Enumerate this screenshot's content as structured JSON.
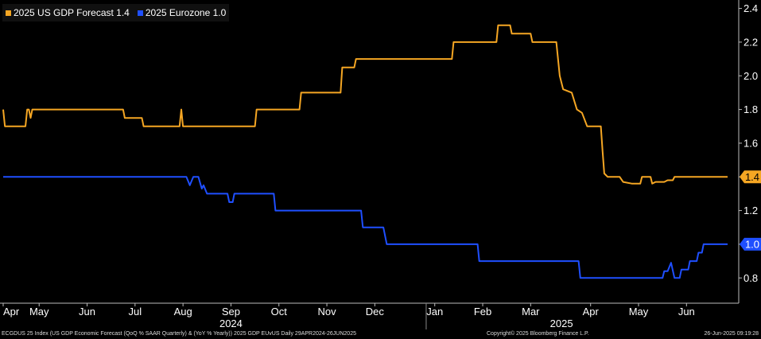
{
  "chart_data": {
    "type": "line",
    "legend_position": "top-left",
    "grid": false,
    "series": [
      {
        "name": "2025 US GDP Forecast 1.4",
        "color": "#f5a623",
        "last_value_label": "1.4",
        "points": [
          [
            "2024-04-29",
            1.8
          ],
          [
            "2024-04-30",
            1.7
          ],
          [
            "2024-05-01",
            1.7
          ],
          [
            "2024-05-12",
            1.7
          ],
          [
            "2024-05-13",
            1.8
          ],
          [
            "2024-05-14",
            1.8
          ],
          [
            "2024-05-15",
            1.75
          ],
          [
            "2024-05-16",
            1.8
          ],
          [
            "2024-06-01",
            1.8
          ],
          [
            "2024-07-01",
            1.8
          ],
          [
            "2024-07-08",
            1.8
          ],
          [
            "2024-07-09",
            1.75
          ],
          [
            "2024-07-19",
            1.75
          ],
          [
            "2024-07-20",
            1.7
          ],
          [
            "2024-08-10",
            1.7
          ],
          [
            "2024-08-11",
            1.8
          ],
          [
            "2024-08-12",
            1.7
          ],
          [
            "2024-09-01",
            1.7
          ],
          [
            "2024-09-23",
            1.7
          ],
          [
            "2024-09-24",
            1.8
          ],
          [
            "2024-10-19",
            1.8
          ],
          [
            "2024-10-20",
            1.9
          ],
          [
            "2024-11-12",
            1.9
          ],
          [
            "2024-11-13",
            2.05
          ],
          [
            "2024-11-20",
            2.05
          ],
          [
            "2024-11-21",
            2.1
          ],
          [
            "2024-12-01",
            2.1
          ],
          [
            "2025-01-01",
            2.1
          ],
          [
            "2025-01-16",
            2.1
          ],
          [
            "2025-01-17",
            2.2
          ],
          [
            "2025-02-01",
            2.2
          ],
          [
            "2025-02-11",
            2.2
          ],
          [
            "2025-02-12",
            2.3
          ],
          [
            "2025-02-19",
            2.3
          ],
          [
            "2025-02-20",
            2.25
          ],
          [
            "2025-03-03",
            2.25
          ],
          [
            "2025-03-04",
            2.2
          ],
          [
            "2025-03-18",
            2.2
          ],
          [
            "2025-03-20",
            2.0
          ],
          [
            "2025-03-22",
            1.92
          ],
          [
            "2025-03-27",
            1.9
          ],
          [
            "2025-03-30",
            1.8
          ],
          [
            "2025-04-02",
            1.78
          ],
          [
            "2025-04-05",
            1.7
          ],
          [
            "2025-04-13",
            1.7
          ],
          [
            "2025-04-14",
            1.55
          ],
          [
            "2025-04-15",
            1.42
          ],
          [
            "2025-04-17",
            1.4
          ],
          [
            "2025-04-24",
            1.4
          ],
          [
            "2025-04-26",
            1.37
          ],
          [
            "2025-05-01",
            1.36
          ],
          [
            "2025-05-06",
            1.36
          ],
          [
            "2025-05-07",
            1.4
          ],
          [
            "2025-05-12",
            1.4
          ],
          [
            "2025-05-13",
            1.36
          ],
          [
            "2025-05-15",
            1.37
          ],
          [
            "2025-05-20",
            1.37
          ],
          [
            "2025-05-22",
            1.38
          ],
          [
            "2025-05-25",
            1.38
          ],
          [
            "2025-05-26",
            1.4
          ],
          [
            "2025-06-26",
            1.4
          ]
        ]
      },
      {
        "name": "2025 Eurozone 1.0",
        "color": "#1f4fff",
        "last_value_label": "1.0",
        "points": [
          [
            "2024-04-29",
            1.4
          ],
          [
            "2024-05-01",
            1.4
          ],
          [
            "2024-06-01",
            1.4
          ],
          [
            "2024-07-01",
            1.4
          ],
          [
            "2024-08-01",
            1.4
          ],
          [
            "2024-08-14",
            1.4
          ],
          [
            "2024-08-16",
            1.35
          ],
          [
            "2024-08-18",
            1.4
          ],
          [
            "2024-08-21",
            1.4
          ],
          [
            "2024-08-23",
            1.33
          ],
          [
            "2024-08-24",
            1.35
          ],
          [
            "2024-08-26",
            1.3
          ],
          [
            "2024-09-01",
            1.3
          ],
          [
            "2024-09-07",
            1.3
          ],
          [
            "2024-09-08",
            1.25
          ],
          [
            "2024-09-10",
            1.25
          ],
          [
            "2024-09-11",
            1.3
          ],
          [
            "2024-10-01",
            1.3
          ],
          [
            "2024-10-04",
            1.3
          ],
          [
            "2024-10-05",
            1.2
          ],
          [
            "2024-11-01",
            1.2
          ],
          [
            "2024-11-24",
            1.2
          ],
          [
            "2024-11-25",
            1.1
          ],
          [
            "2024-12-01",
            1.1
          ],
          [
            "2024-12-07",
            1.1
          ],
          [
            "2024-12-09",
            1.0
          ],
          [
            "2025-01-01",
            1.0
          ],
          [
            "2025-01-31",
            1.0
          ],
          [
            "2025-02-01",
            0.9
          ],
          [
            "2025-03-01",
            0.9
          ],
          [
            "2025-03-31",
            0.9
          ],
          [
            "2025-04-01",
            0.8
          ],
          [
            "2025-05-01",
            0.8
          ],
          [
            "2025-05-19",
            0.8
          ],
          [
            "2025-05-20",
            0.84
          ],
          [
            "2025-05-22",
            0.84
          ],
          [
            "2025-05-24",
            0.89
          ],
          [
            "2025-05-26",
            0.8
          ],
          [
            "2025-05-29",
            0.8
          ],
          [
            "2025-05-30",
            0.85
          ],
          [
            "2025-06-03",
            0.85
          ],
          [
            "2025-06-04",
            0.9
          ],
          [
            "2025-06-08",
            0.9
          ],
          [
            "2025-06-09",
            0.95
          ],
          [
            "2025-06-11",
            0.95
          ],
          [
            "2025-06-12",
            1.0
          ],
          [
            "2025-06-26",
            1.0
          ]
        ]
      }
    ],
    "x_range": [
      "2024-04-29",
      "2025-06-26"
    ],
    "y_range": [
      0.65,
      2.45
    ],
    "y_ticks": [
      0.8,
      1.0,
      1.2,
      1.4,
      1.6,
      1.8,
      2.0,
      2.2,
      2.4
    ],
    "y_tick_labels": [
      "0.8",
      "1.0",
      "1.2",
      "1.4",
      "1.6",
      "1.8",
      "2.0",
      "2.2",
      "2.4"
    ],
    "x_ticks": [
      {
        "date": "2024-04-29",
        "label": "Apr"
      },
      {
        "date": "2024-05-20",
        "label": "May"
      },
      {
        "date": "2024-06-17",
        "label": "Jun"
      },
      {
        "date": "2024-07-15",
        "label": "Jul"
      },
      {
        "date": "2024-08-12",
        "label": "Aug"
      },
      {
        "date": "2024-09-09",
        "label": "Sep"
      },
      {
        "date": "2024-10-07",
        "label": "Oct"
      },
      {
        "date": "2024-11-04",
        "label": "Nov"
      },
      {
        "date": "2024-12-02",
        "label": "Dec"
      },
      {
        "date": "2025-01-06",
        "label": "Jan"
      },
      {
        "date": "2025-02-03",
        "label": "Feb"
      },
      {
        "date": "2025-03-03",
        "label": "Mar"
      },
      {
        "date": "2025-04-07",
        "label": "Apr"
      },
      {
        "date": "2025-05-05",
        "label": "May"
      },
      {
        "date": "2025-06-02",
        "label": "Jun"
      }
    ],
    "x_year_labels": [
      {
        "date": "2024-09-09",
        "label": "2024"
      },
      {
        "date": "2025-03-21",
        "label": "2025"
      }
    ],
    "year_divider_date": "2025-01-01"
  },
  "footer": {
    "left": "ECGDUS 25 Index (US GDP Economic Forecast (QoQ % SAAR Quarterly) & (YoY % Yearly)) 2025 GDP EUvUS  Daily 29APR2024-26JUN2025",
    "center": "Copyright© 2025 Bloomberg Finance L.P.",
    "right": "26-Jun-2025 09:19:28"
  }
}
